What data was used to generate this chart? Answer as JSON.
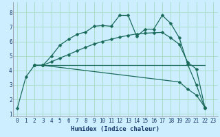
{
  "xlabel": "Humidex (Indice chaleur)",
  "bg_color": "#cceeff",
  "grid_color": "#aaddcc",
  "line_color": "#1a6a5a",
  "xlim": [
    -0.5,
    23.5
  ],
  "ylim": [
    0.8,
    8.7
  ],
  "xticks": [
    0,
    1,
    2,
    3,
    4,
    5,
    6,
    7,
    8,
    9,
    10,
    11,
    12,
    13,
    14,
    15,
    16,
    17,
    18,
    19,
    20,
    21,
    22,
    23
  ],
  "yticks": [
    1,
    2,
    3,
    4,
    5,
    6,
    7,
    8
  ],
  "line1_x": [
    2,
    3,
    4,
    5,
    6,
    7,
    8,
    9,
    10,
    11,
    12,
    13,
    14,
    15,
    16,
    17,
    18,
    19,
    20,
    21,
    22
  ],
  "line1_y": [
    4.35,
    4.35,
    5.0,
    5.75,
    6.15,
    6.5,
    6.65,
    7.05,
    7.1,
    7.05,
    7.8,
    7.8,
    6.35,
    6.85,
    6.85,
    7.8,
    7.25,
    6.25,
    4.4,
    3.0,
    1.4
  ],
  "line2_x": [
    2,
    3,
    4,
    5,
    6,
    7,
    8,
    9,
    10,
    11,
    12,
    13,
    14,
    15,
    16,
    17,
    18,
    19,
    20,
    21,
    22
  ],
  "line2_y": [
    4.35,
    4.35,
    4.6,
    4.85,
    5.1,
    5.35,
    5.6,
    5.82,
    6.0,
    6.15,
    6.3,
    6.42,
    6.52,
    6.57,
    6.6,
    6.62,
    6.25,
    5.8,
    4.55,
    4.1,
    1.45
  ],
  "line3_x": [
    2,
    3,
    22
  ],
  "line3_y": [
    4.35,
    4.35,
    4.35
  ],
  "line4_x": [
    0,
    1,
    2,
    3,
    19,
    20,
    21,
    22
  ],
  "line4_y": [
    1.4,
    3.55,
    4.35,
    4.35,
    3.2,
    2.7,
    2.3,
    1.45
  ]
}
